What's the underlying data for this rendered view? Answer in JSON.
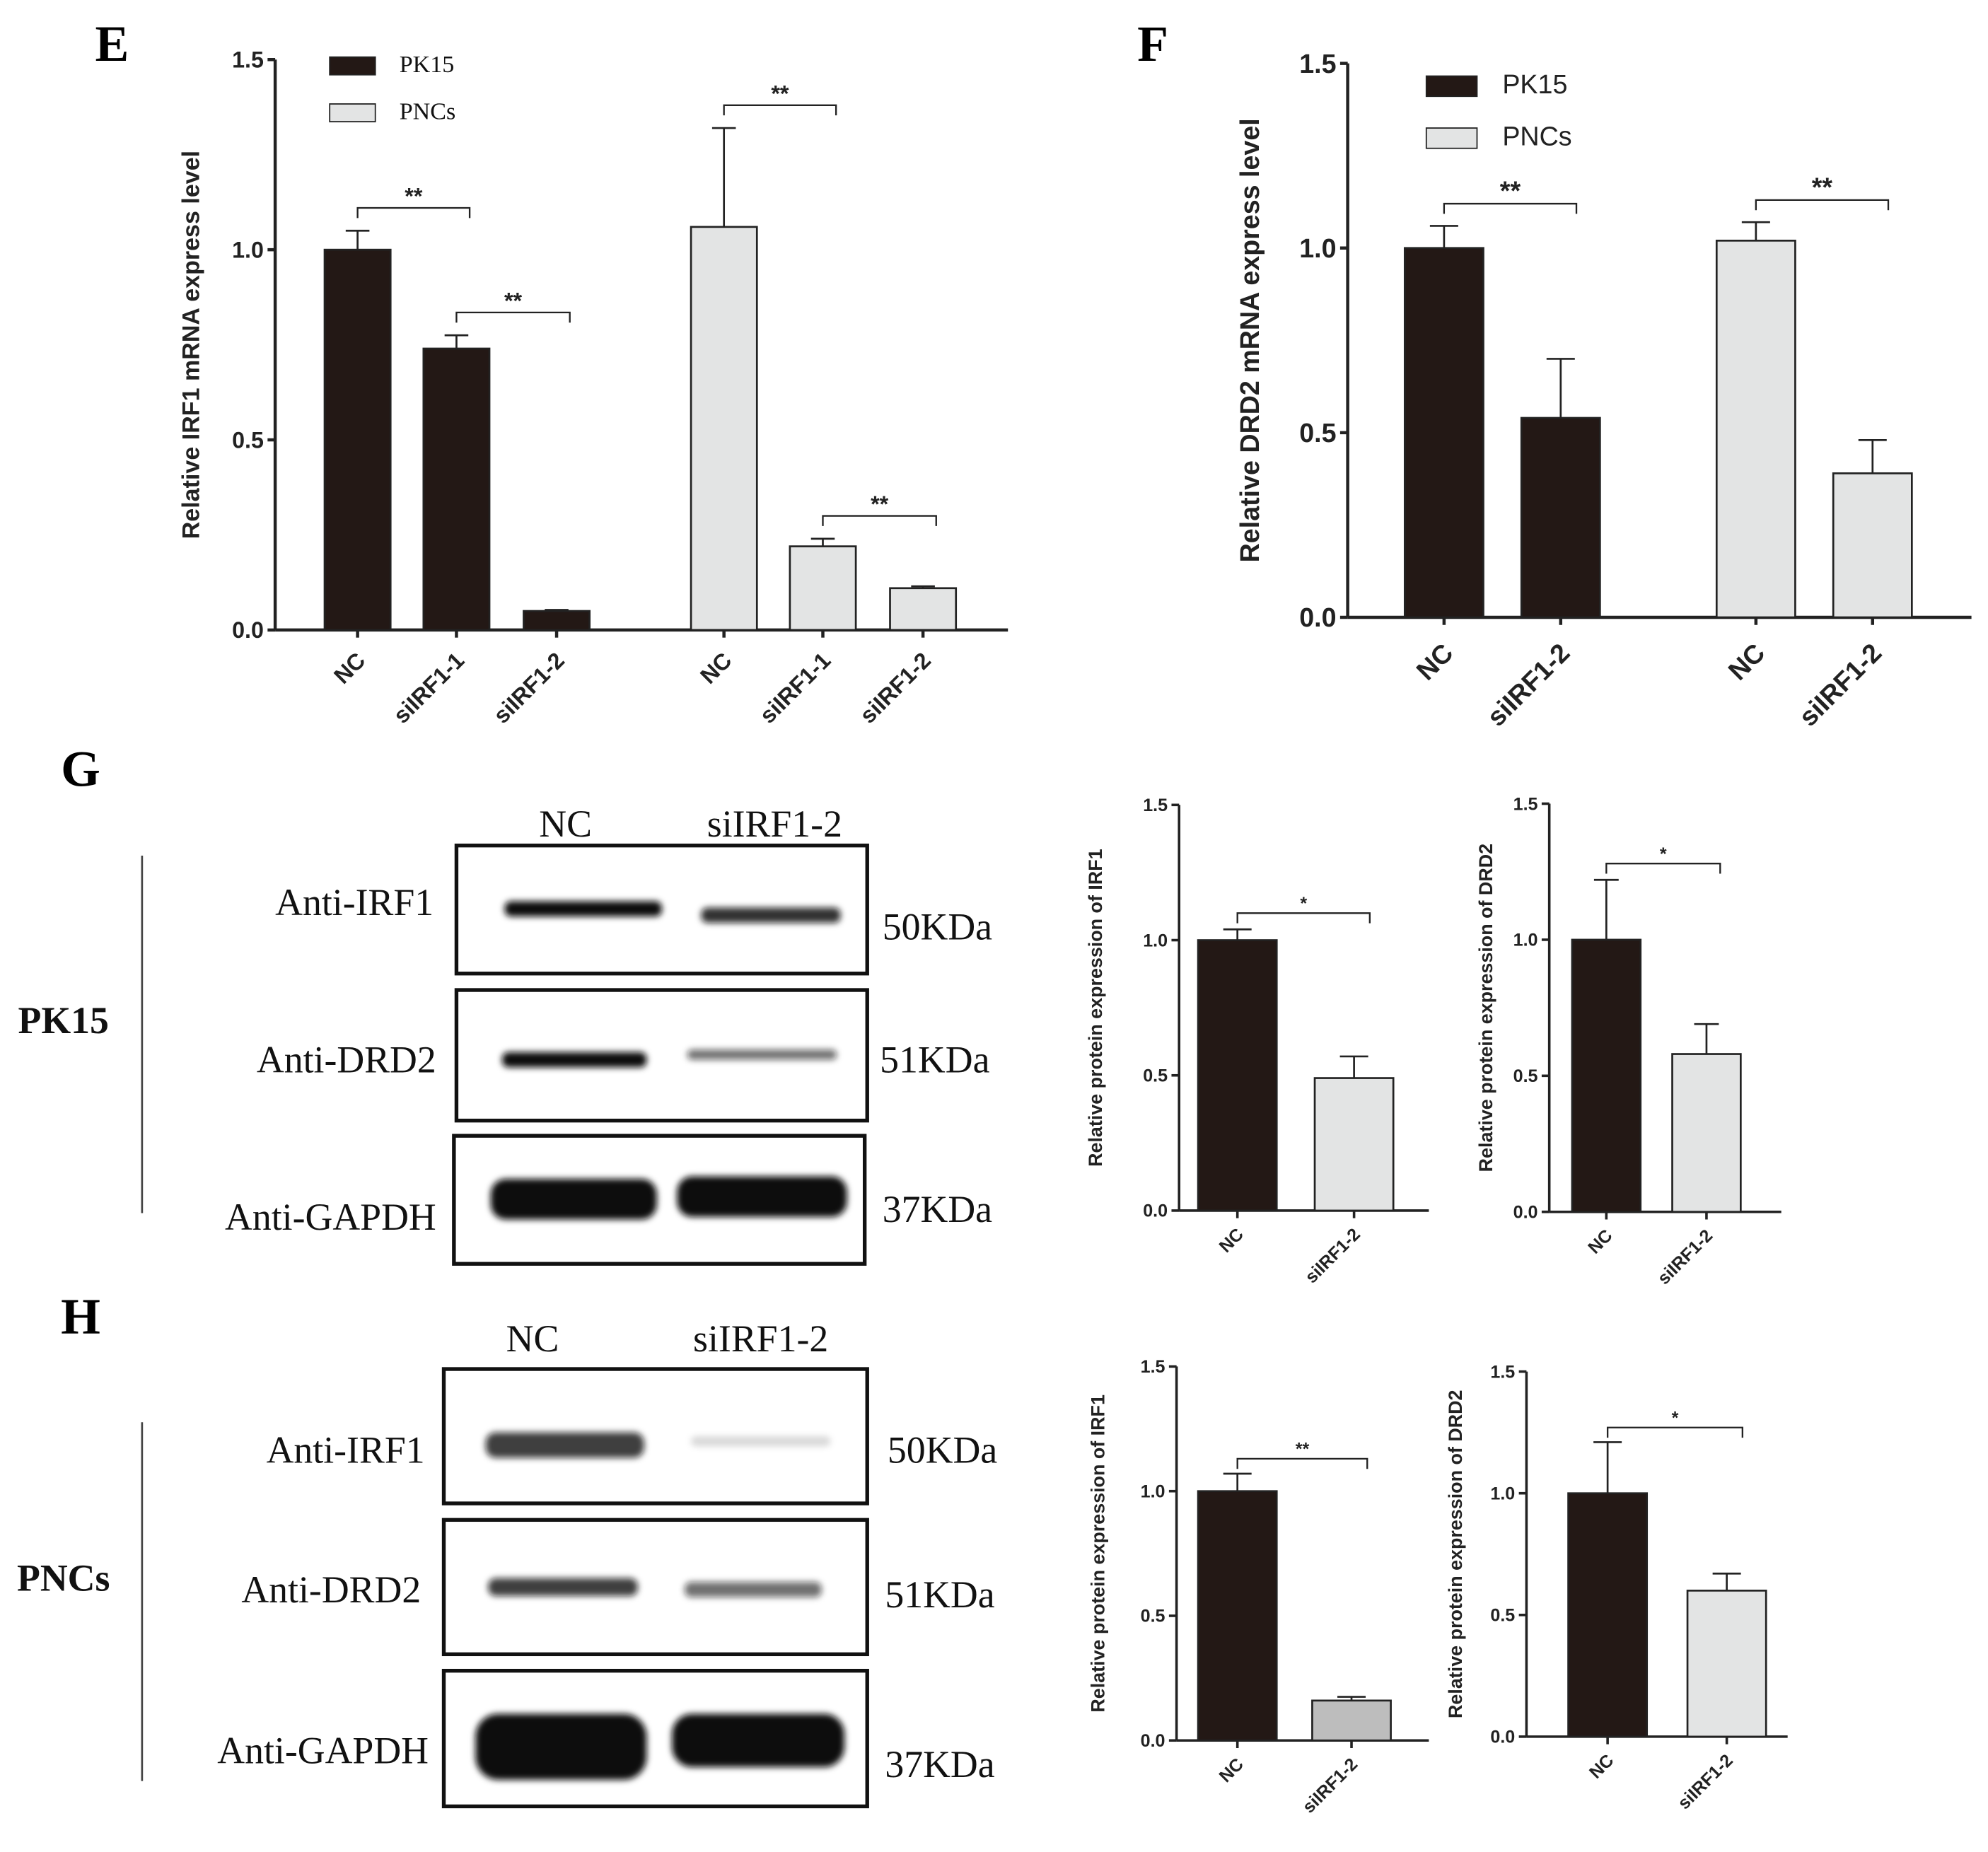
{
  "chart_data": [
    {
      "type": "bar",
      "panel": "E",
      "ylabel": "Relative IRF1 mRNA express level",
      "categories": [
        "NC",
        "siIRF1-1",
        "siIRF1-2"
      ],
      "series": [
        {
          "name": "PK15",
          "color": "#231815",
          "values": [
            1.0,
            0.74,
            0.05
          ],
          "errors": [
            0.05,
            0.035,
            0.003
          ],
          "significance": [
            {
              "label": "**",
              "between": [
                "NC",
                "siIRF1-1"
              ]
            },
            {
              "label": "**",
              "between": [
                "siIRF1-1",
                "siIRF1-2"
              ]
            }
          ]
        },
        {
          "name": "PNCs",
          "color": "#e3e4e4",
          "values": [
            1.06,
            0.22,
            0.11
          ],
          "errors": [
            0.26,
            0.02,
            0.005
          ],
          "significance": [
            {
              "label": "**",
              "between": [
                "NC",
                "siIRF1-1"
              ]
            },
            {
              "label": "**",
              "between": [
                "siIRF1-1",
                "siIRF1-2"
              ]
            }
          ]
        }
      ],
      "ylim": [
        0,
        1.5
      ],
      "yticks": [
        {
          "value": 0,
          "label": "0.0"
        },
        0.5,
        {
          "value": 1,
          "label": "1.0"
        },
        1.5
      ],
      "legend": "upper left"
    },
    {
      "type": "bar",
      "panel": "F",
      "ylabel": "Relative DRD2 mRNA express level",
      "categories": [
        "NC",
        "siIRF1-2"
      ],
      "series": [
        {
          "name": "PK15",
          "color": "#231815",
          "values": [
            1.0,
            0.54
          ],
          "errors": [
            0.06,
            0.16
          ],
          "significance": [
            {
              "label": "**",
              "between": [
                "NC",
                "siIRF1-2"
              ]
            }
          ]
        },
        {
          "name": "PNCs",
          "color": "#e3e4e4",
          "values": [
            1.02,
            0.39
          ],
          "errors": [
            0.05,
            0.09
          ],
          "significance": [
            {
              "label": "**",
              "between": [
                "NC",
                "siIRF1-2"
              ]
            }
          ]
        }
      ],
      "ylim": [
        0,
        1.5
      ],
      "yticks": [
        {
          "value": 0,
          "label": "0.0"
        },
        0.5,
        {
          "value": 1,
          "label": "1.0"
        },
        1.5
      ],
      "legend": "upper left"
    },
    {
      "type": "bar",
      "ylabel": "Relative protein expression of IRF1",
      "categories": [
        "NC",
        "siIRF1-2"
      ],
      "values": [
        1.0,
        0.49
      ],
      "errors": [
        0.04,
        0.08
      ],
      "colors": [
        "#231815",
        "#e3e4e4"
      ],
      "significance": [
        {
          "label": "*",
          "between": [
            "NC",
            "siIRF1-2"
          ]
        }
      ],
      "ylim": [
        0,
        1.5
      ],
      "yticks": [
        {
          "value": 0,
          "label": "0.0"
        },
        0.5,
        {
          "value": 1,
          "label": "1.0"
        },
        1.5
      ]
    },
    {
      "type": "bar",
      "ylabel": "Relative protein expression of DRD2",
      "categories": [
        "NC",
        "siIRF1-2"
      ],
      "values": [
        1.0,
        0.58
      ],
      "errors": [
        0.22,
        0.11
      ],
      "colors": [
        "#231815",
        "#e3e4e4"
      ],
      "significance": [
        {
          "label": "*",
          "between": [
            "NC",
            "siIRF1-2"
          ]
        }
      ],
      "ylim": [
        0,
        1.5
      ],
      "yticks": [
        {
          "value": 0,
          "label": "0.0"
        },
        0.5,
        {
          "value": 1,
          "label": "1.0"
        },
        1.5
      ]
    },
    {
      "type": "bar",
      "ylabel": "Relative protein expression of IRF1",
      "categories": [
        "NC",
        "siIRF1-2"
      ],
      "values": [
        1.0,
        0.16
      ],
      "errors": [
        0.07,
        0.015
      ],
      "colors": [
        "#231815",
        "#bdbdbd"
      ],
      "significance": [
        {
          "label": "**",
          "between": [
            "NC",
            "siIRF1-2"
          ]
        }
      ],
      "ylim": [
        0,
        1.5
      ],
      "yticks": [
        {
          "value": 0,
          "label": "0.0"
        },
        0.5,
        {
          "value": 1,
          "label": "1.0"
        },
        1.5
      ]
    },
    {
      "type": "bar",
      "ylabel": "Relative protein expression of DRD2",
      "categories": [
        "NC",
        "siIRF1-2"
      ],
      "values": [
        1.0,
        0.6
      ],
      "errors": [
        0.21,
        0.07
      ],
      "colors": [
        "#231815",
        "#e3e4e4"
      ],
      "significance": [
        {
          "label": "*",
          "between": [
            "NC",
            "siIRF1-2"
          ]
        }
      ],
      "ylim": [
        0,
        1.5
      ],
      "yticks": [
        {
          "value": 0,
          "label": "0.0"
        },
        0.5,
        {
          "value": 1,
          "label": "1.0"
        },
        1.5
      ]
    }
  ],
  "blots": [
    {
      "panel": "G",
      "cell": "PK15",
      "lanes": [
        "NC",
        "siIRF1-2"
      ],
      "rows": [
        {
          "antibody": "Anti-IRF1",
          "size": "50KDa"
        },
        {
          "antibody": "Anti-DRD2",
          "size": "51KDa"
        },
        {
          "antibody": "Anti-GAPDH",
          "size": "37KDa"
        }
      ]
    },
    {
      "panel": "H",
      "cell": "PNCs",
      "lanes": [
        "NC",
        "siIRF1-2"
      ],
      "rows": [
        {
          "antibody": "Anti-IRF1",
          "size": "50KDa"
        },
        {
          "antibody": "Anti-DRD2",
          "size": "51KDa"
        },
        {
          "antibody": "Anti-GAPDH",
          "size": "37KDa"
        }
      ]
    }
  ]
}
